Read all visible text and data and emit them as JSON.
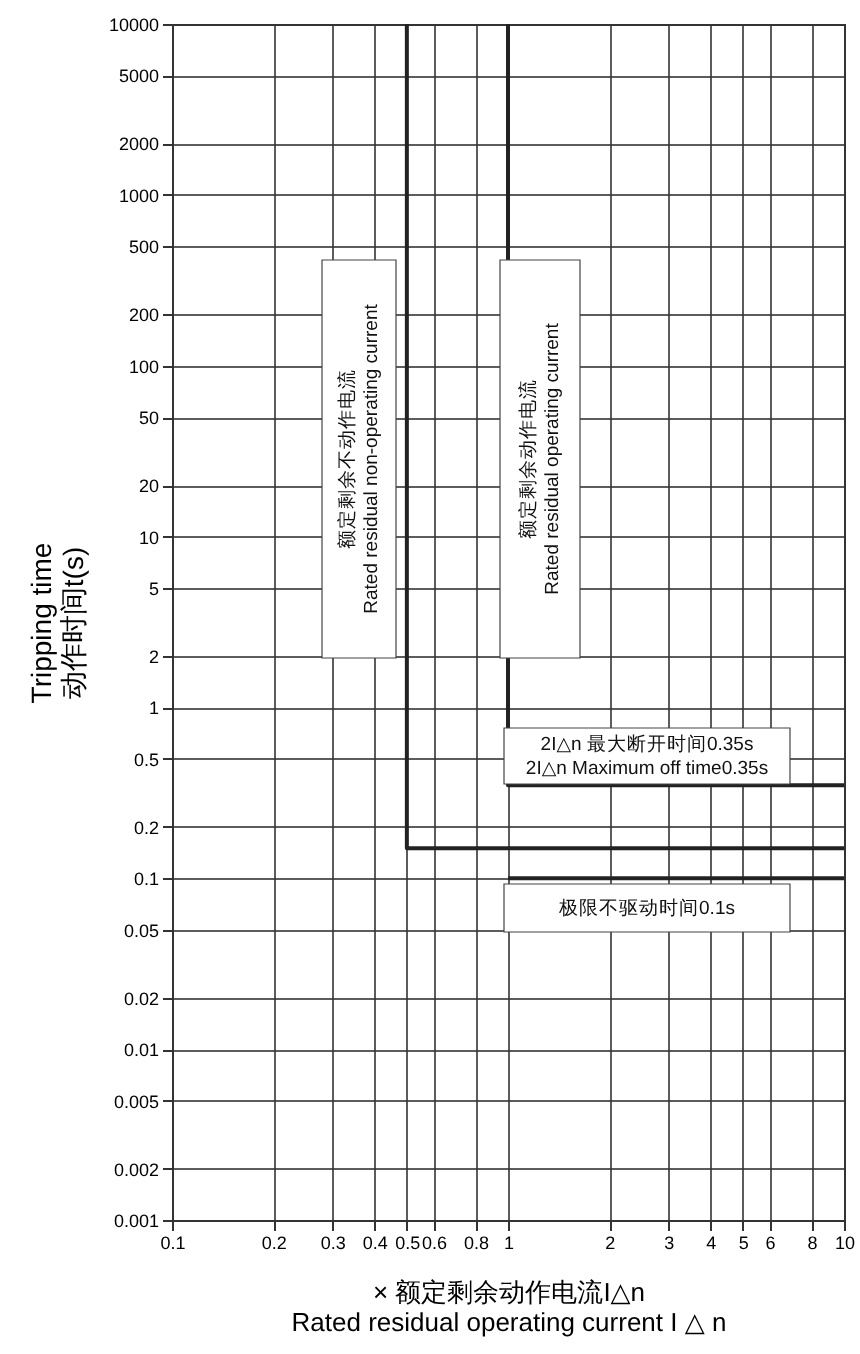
{
  "chart_data": {
    "type": "line",
    "xlabel": "× 额定剩余动作电流I△n\nRated residual operating current I △ n",
    "ylabel": "Tripping time\n动作时间t(s)",
    "log": "xy",
    "grid": true,
    "xlim": [
      0.1,
      10
    ],
    "ylim": [
      0.001,
      10000
    ],
    "xticks": [
      0.1,
      0.2,
      0.3,
      0.4,
      0.5,
      0.6,
      0.8,
      1,
      2,
      3,
      4,
      5,
      6,
      8,
      10
    ],
    "yticks": [
      0.001,
      0.002,
      0.005,
      0.01,
      0.02,
      0.05,
      0.1,
      0.2,
      0.5,
      1,
      2,
      5,
      10,
      20,
      50,
      100,
      200,
      500,
      1000,
      2000,
      5000,
      10000
    ],
    "series": [
      {
        "color": "#222222",
        "x": [
          0.5,
          0.5,
          10
        ],
        "values": [
          10000,
          0.15,
          0.15
        ]
      },
      {
        "color": "#222222",
        "x": [
          1,
          1,
          10
        ],
        "values": [
          10000,
          0.35,
          0.35
        ]
      },
      {
        "color": "#222222",
        "x": [
          1,
          10
        ],
        "values": [
          0.1,
          0.1
        ]
      }
    ],
    "annotations": [
      "额定剩余不动作电流\nRated residual non-operating current",
      "额定剩余动作电流\nRated residual operating current",
      "2I△n 最大断开时间0.35s\n2I△n Maximum off time0.35s",
      "极限不驱动时间0.1s"
    ]
  }
}
